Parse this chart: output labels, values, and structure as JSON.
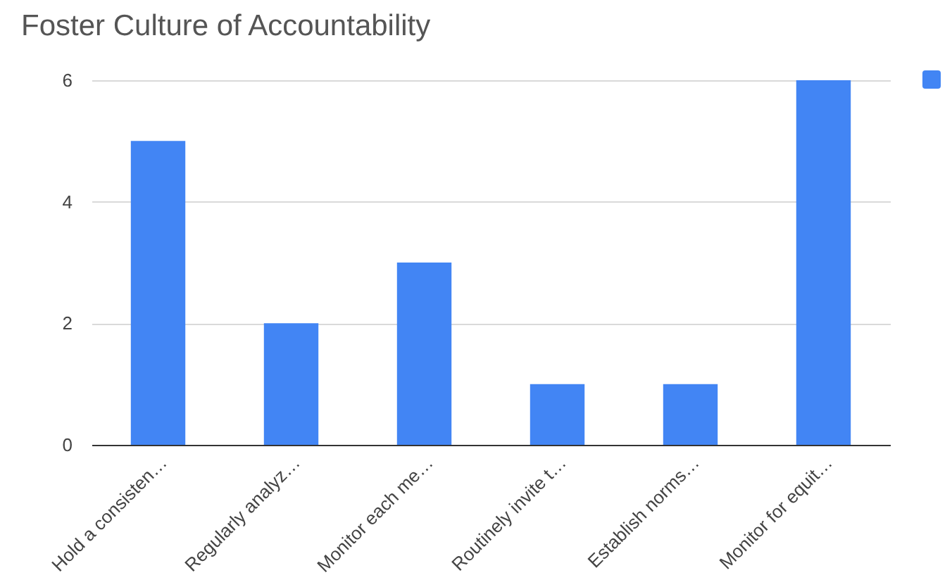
{
  "chart_data": {
    "type": "bar",
    "title": "Foster Culture of Accountability",
    "categories": [
      "Hold a consisten…",
      "Regularly analyz…",
      "Monitor each me…",
      "Routinely invite t…",
      "Establish norms…",
      "Monitor for equit…"
    ],
    "series": [
      {
        "color": "#4285f4",
        "values": [
          5,
          2,
          3,
          1,
          1,
          6
        ]
      }
    ],
    "ylim": [
      0,
      6
    ],
    "yticks": [
      0,
      2,
      4,
      6
    ],
    "grid": "y"
  }
}
